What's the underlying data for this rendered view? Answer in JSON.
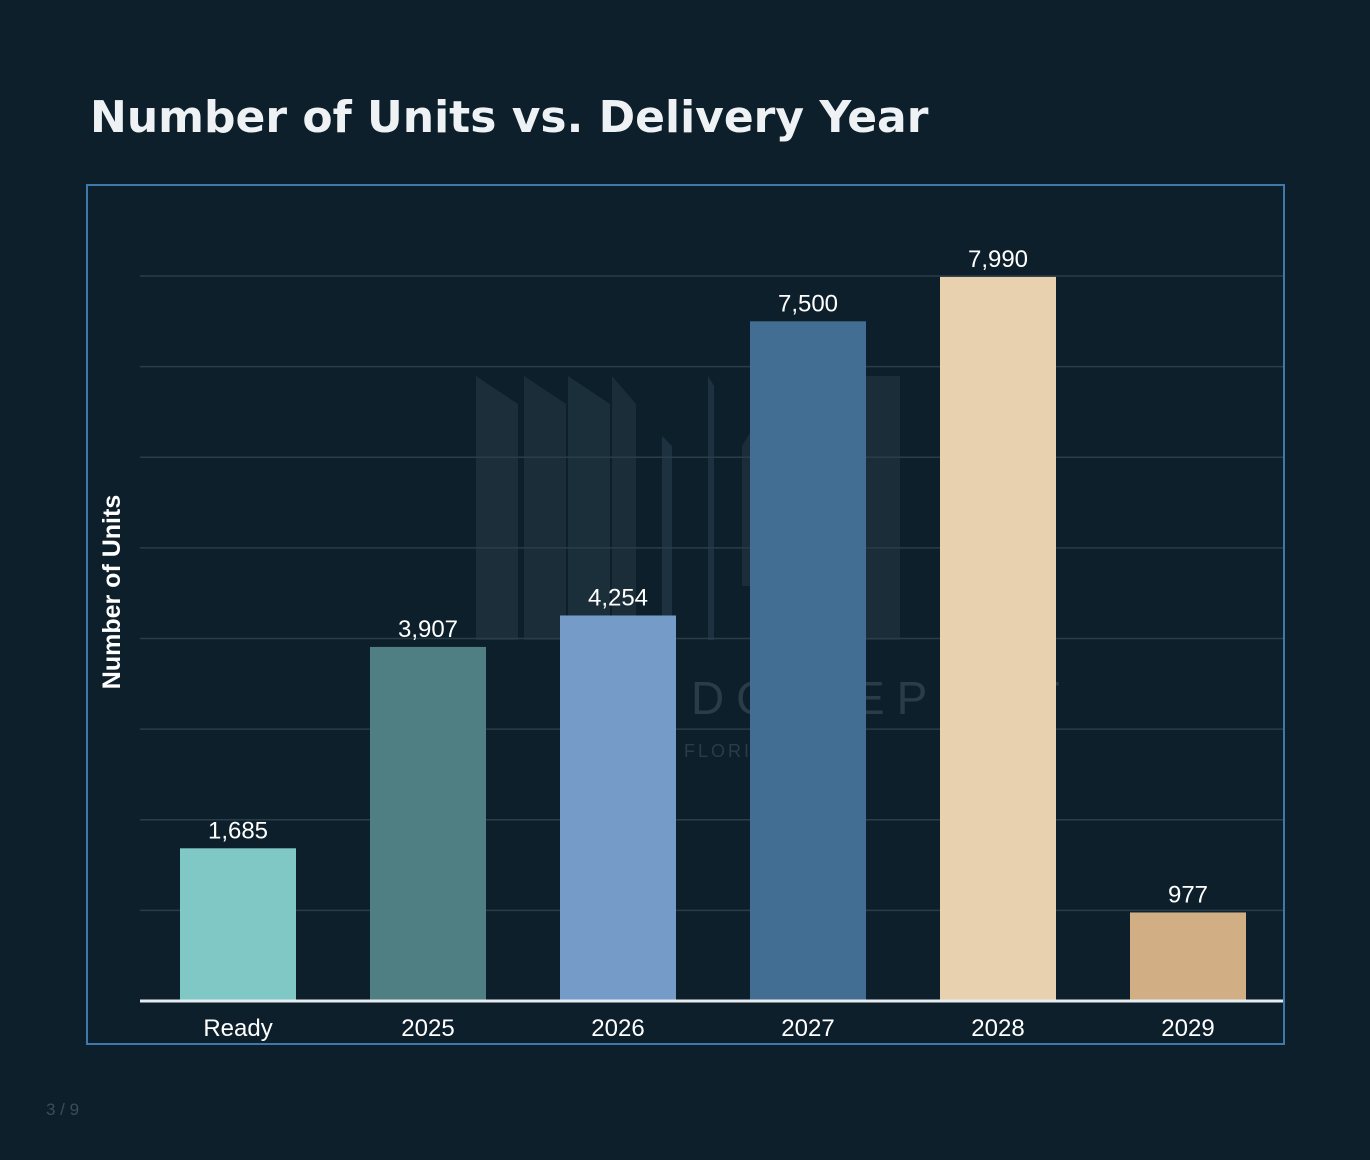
{
  "chart_data": {
    "type": "bar",
    "title": "Number of Units vs. Delivery Year",
    "xlabel": "",
    "ylabel": "Number of Units",
    "categories": [
      "Ready",
      "2025",
      "2026",
      "2027",
      "2028",
      "2029"
    ],
    "values": [
      1685,
      3907,
      4254,
      7500,
      7990,
      977
    ],
    "value_labels": [
      "1,685",
      "3,907",
      "4,254",
      "7,500",
      "7,990",
      "977"
    ],
    "bar_colors": [
      "#7fc8c6",
      "#4f7e83",
      "#759cc8",
      "#436e94",
      "#e8d1ae",
      "#d2ae84"
    ],
    "ylim": [
      0,
      8000
    ],
    "grid": true,
    "gridline_step": 1000,
    "legend": "none"
  },
  "colors": {
    "background": "#0c1f2b",
    "frame_border": "#3f78ad",
    "gridline": "#2a3d49",
    "axis_line": "#e6ecef",
    "text": "#ffffff"
  },
  "watermark": {
    "text_line1": "ONDO REPORT",
    "text_line2": "FLORIDA"
  },
  "footer": {
    "page_indicator": "3 / 9"
  }
}
